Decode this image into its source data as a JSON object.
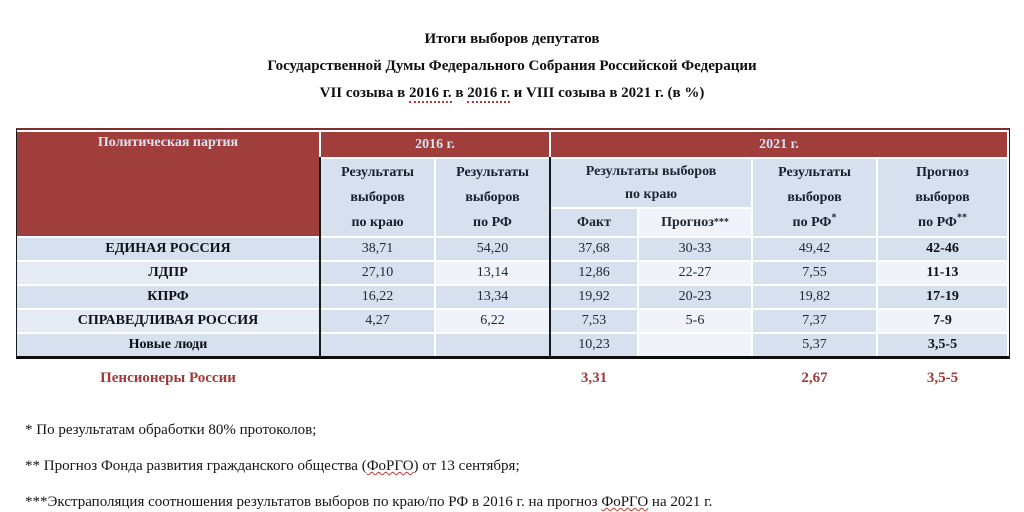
{
  "colors": {
    "header_red": "#a03e3c",
    "cell_blue": "#d7e0ef",
    "cell_light": "#f0f3fa",
    "pensioners_red": "#9e3b38",
    "spellcheck_red": "#c4372c"
  },
  "title": {
    "line1": "Итоги выборов депутатов",
    "line2": "Государственной Думы Федерального Собрания Российской Федерации",
    "line3_parts": [
      "VII созыва в ",
      "2016 г.",
      " в ",
      "2016 г.",
      " и VIII созыва в 2021 г. (в %)"
    ]
  },
  "table": {
    "party_header": "Политическая партия",
    "year_2016": "2016 г.",
    "year_2021": "2021 г.",
    "subheaders": {
      "kray16": {
        "line1": "Результаты",
        "line2": "выборов",
        "line3": "по краю",
        "sup": ""
      },
      "rf16": {
        "line1": "Результаты",
        "line2": "выборов",
        "line3": "по РФ",
        "sup": ""
      },
      "kray21": {
        "line1": "Результаты выборов",
        "line2": "по краю"
      },
      "fact": {
        "label": "Факт",
        "sup": ""
      },
      "prognoz": {
        "label": "Прогноз",
        "sup": "***"
      },
      "rf21": {
        "line1": "Результаты",
        "line2": "выборов",
        "line3": "по РФ",
        "sup": "*"
      },
      "prog21": {
        "line1": "Прогноз",
        "line2": "выборов",
        "line3": "по РФ",
        "sup": "**"
      }
    },
    "rows": [
      {
        "party": "ЕДИНАЯ РОССИЯ",
        "kray16": "38,71",
        "rf16": "54,20",
        "fact": "37,68",
        "prognoz": "30-33",
        "rf21": "49,42",
        "prog21": "42-46"
      },
      {
        "party": "ЛДПР",
        "kray16": "27,10",
        "rf16": "13,14",
        "fact": "12,86",
        "prognoz": "22-27",
        "rf21": "7,55",
        "prog21": "11-13"
      },
      {
        "party": "КПРФ",
        "kray16": "16,22",
        "rf16": "13,34",
        "fact": "19,92",
        "prognoz": "20-23",
        "rf21": "19,82",
        "prog21": "17-19"
      },
      {
        "party": "СПРАВЕДЛИВАЯ РОССИЯ",
        "kray16": "4,27",
        "rf16": "6,22",
        "fact": "7,53",
        "prognoz": "5-6",
        "rf21": "7,37",
        "prog21": "7-9"
      },
      {
        "party": "Новые люди",
        "kray16": "",
        "rf16": "",
        "fact": "10,23",
        "prognoz": "",
        "rf21": "5,37",
        "prog21": "3,5-5"
      }
    ],
    "pensioners": {
      "party": "Пенсионеры России",
      "fact": "3,31",
      "rf21": "2,67",
      "prog21": "3,5-5"
    }
  },
  "footnotes": {
    "f1": "* По результатам обработки 80% протоколов;",
    "f2_parts": [
      "** Прогноз Фонда развития гражданского общества (",
      "ФоРГО",
      ") от 13 сентября;"
    ],
    "f3_parts": [
      "***Экстраполяция соотношения результатов выборов по краю/по РФ в 2016 г. на прогноз ",
      "ФоРГО",
      " на 2021 г."
    ]
  }
}
